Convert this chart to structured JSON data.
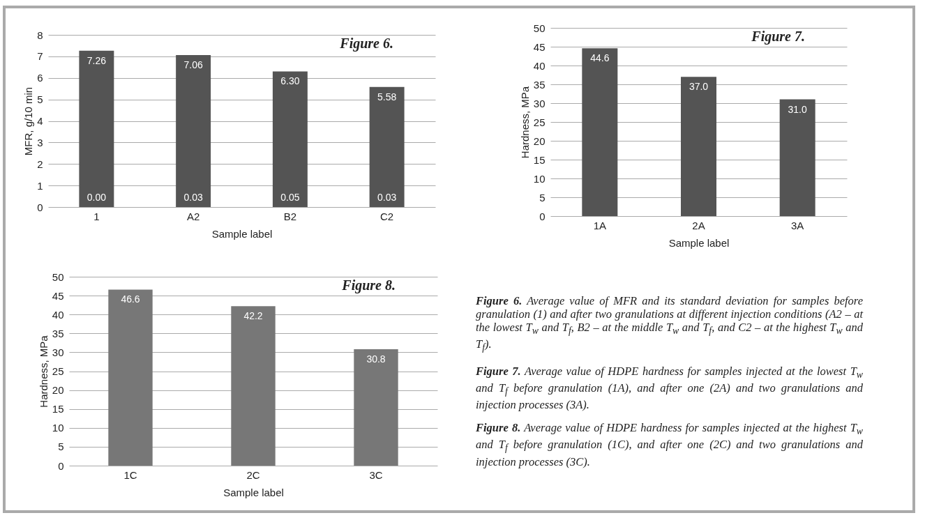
{
  "chart_data": [
    {
      "type": "bar",
      "title": "Figure 6.",
      "xlabel": "Sample label",
      "ylabel": "MFR, g/10 min",
      "categories": [
        "1",
        "A2",
        "B2",
        "C2"
      ],
      "values": [
        7.26,
        7.06,
        6.3,
        5.58
      ],
      "value_labels": [
        "7.26",
        "7.06",
        "6.30",
        "5.58"
      ],
      "color": "#545454",
      "ylim": [
        0,
        8
      ],
      "yticks": [
        0,
        1,
        2,
        3,
        4,
        5,
        6,
        7,
        8
      ],
      "grid": "y",
      "annotations": [
        {
          "text": "0.00",
          "x": "1",
          "y": 0
        },
        {
          "text": "0.03",
          "x": "A2",
          "y": 0
        },
        {
          "text": "0.05",
          "x": "B2",
          "y": 0
        },
        {
          "text": "0.03",
          "x": "C2",
          "y": 0
        }
      ]
    },
    {
      "type": "bar",
      "title": "Figure 7.",
      "xlabel": "Sample label",
      "ylabel": "Hardness, MPa",
      "categories": [
        "1A",
        "2A",
        "3A"
      ],
      "values": [
        44.6,
        37.0,
        31.0
      ],
      "value_labels": [
        "44.6",
        "37.0",
        "31.0"
      ],
      "color": "#545454",
      "ylim": [
        0,
        50
      ],
      "yticks": [
        0,
        5,
        10,
        15,
        20,
        25,
        30,
        35,
        40,
        45,
        50
      ],
      "grid": "y"
    },
    {
      "type": "bar",
      "title": "Figure 8.",
      "xlabel": "Sample label",
      "ylabel": "Hardness, MPa",
      "categories": [
        "1C",
        "2C",
        "3C"
      ],
      "values": [
        46.6,
        42.2,
        30.8
      ],
      "value_labels": [
        "46.6",
        "42.2",
        "30.8"
      ],
      "color": "#777777",
      "ylim": [
        0,
        50
      ],
      "yticks": [
        0,
        5,
        10,
        15,
        20,
        25,
        30,
        35,
        40,
        45,
        50
      ],
      "grid": "y"
    },
    {
      "type": "other",
      "annotations": [
        "Figure 6.",
        " Average value of MFR and its standard deviation for samples before granulation (1) and after two granulations at different injection conditions (A2 – at the lowest T$_{w}$ and T$_{f}$, B2 – at the middle T$_{w}$ and T$_{f}$, and C2 – at the highest T$_{w}$ and T$_{f}$).",
        "Figure 7.",
        " Average value of HDPE hardness for samples injected at the lowest T$_{w}$ and T$_{f}$ before granulation (1A), and after one (2A) and two granulations and injection processes (3A).",
        "Figure 8.",
        " Average value of HDPE hardness for samples injected at the highest T$_{w}$ and T$_{f}$ before granulation (1C), and after one (2C) and two granulations and injection processes (3C)."
      ]
    }
  ]
}
